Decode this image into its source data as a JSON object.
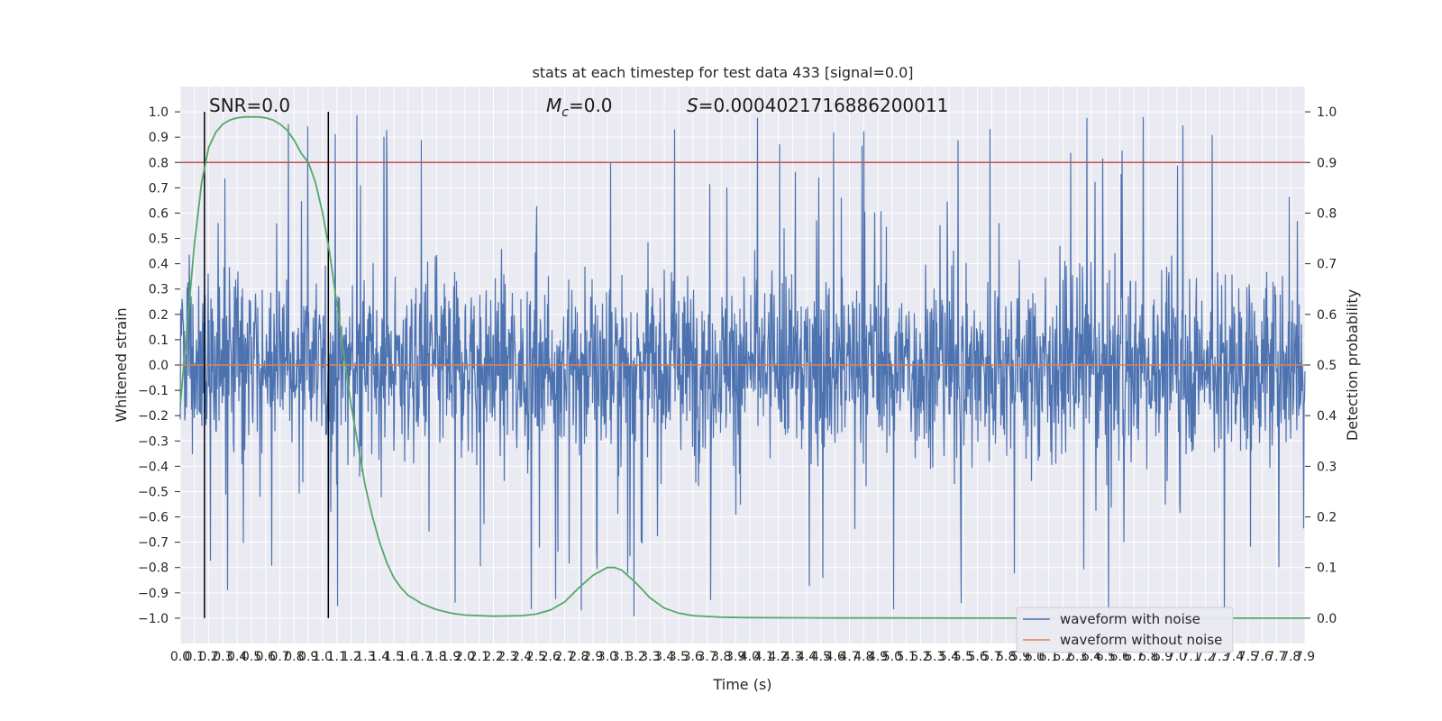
{
  "chart_data": {
    "type": "line",
    "title": "stats at each timestep for test data 433 [signal=0.0]",
    "xlabel": "Time (s)",
    "ylabel": "Whitened strain",
    "y2label": "Detection probability",
    "xlim": [
      0.0,
      7.9
    ],
    "ylim": [
      -1.1,
      1.1
    ],
    "y2lim": [
      -0.05,
      1.05
    ],
    "grid": true,
    "x_ticks": [
      0.0,
      0.1,
      0.2,
      0.3,
      0.4,
      0.5,
      0.6,
      0.7,
      0.8,
      0.9,
      1.0,
      1.1,
      1.2,
      1.3,
      1.4,
      1.5,
      1.6,
      1.7,
      1.8,
      1.9,
      2.0,
      2.1,
      2.2,
      2.3,
      2.4,
      2.5,
      2.6,
      2.7,
      2.8,
      2.9,
      3.0,
      3.1,
      3.2,
      3.3,
      3.4,
      3.5,
      3.6,
      3.7,
      3.8,
      3.9,
      4.0,
      4.1,
      4.2,
      4.3,
      4.4,
      4.5,
      4.6,
      4.7,
      4.8,
      4.9,
      5.0,
      5.1,
      5.2,
      5.3,
      5.4,
      5.5,
      5.6,
      5.7,
      5.8,
      5.9,
      6.0,
      6.1,
      6.2,
      6.3,
      6.4,
      6.5,
      6.6,
      6.7,
      6.8,
      6.9,
      7.0,
      7.1,
      7.2,
      7.3,
      7.4,
      7.5,
      7.6,
      7.7,
      7.8,
      7.9
    ],
    "y_ticks": [
      -1.0,
      -0.9,
      -0.8,
      -0.7,
      -0.6,
      -0.5,
      -0.4,
      -0.3,
      -0.2,
      -0.1,
      0.0,
      0.1,
      0.2,
      0.3,
      0.4,
      0.5,
      0.6,
      0.7,
      0.8,
      0.9,
      1.0
    ],
    "y2_ticks": [
      0.0,
      0.1,
      0.2,
      0.3,
      0.4,
      0.5,
      0.6,
      0.7,
      0.8,
      0.9,
      1.0
    ],
    "annotations": {
      "snr": "SNR=0.0",
      "mc": "=0.0",
      "mc_symbol": "M",
      "mc_sub": "c",
      "s": "=0.0004021716886200011",
      "s_symbol": "S"
    },
    "legend": {
      "placement": "lower-right",
      "entries": [
        "waveform with noise",
        "waveform without noise"
      ]
    },
    "threshold": {
      "value": 0.9,
      "axis": "y2",
      "color": "#c44e52"
    },
    "vlines": [
      0.17,
      1.04
    ],
    "noise_series": {
      "name": "waveform with noise",
      "color": "#4c72b0",
      "typical_amplitude": 0.45,
      "max_spike": 1.0
    },
    "clean_series": {
      "name": "waveform without noise",
      "color": "#dd8452",
      "constant_value": 0.0
    },
    "probability_series": {
      "axis": "y2",
      "color": "#55a868",
      "x": [
        0.0,
        0.05,
        0.1,
        0.15,
        0.2,
        0.25,
        0.3,
        0.35,
        0.4,
        0.45,
        0.5,
        0.55,
        0.6,
        0.65,
        0.7,
        0.75,
        0.8,
        0.85,
        0.9,
        0.95,
        1.0,
        1.05,
        1.1,
        1.15,
        1.2,
        1.25,
        1.3,
        1.35,
        1.4,
        1.45,
        1.5,
        1.55,
        1.6,
        1.7,
        1.8,
        1.9,
        2.0,
        2.2,
        2.4,
        2.5,
        2.6,
        2.7,
        2.8,
        2.9,
        3.0,
        3.05,
        3.1,
        3.2,
        3.3,
        3.4,
        3.5,
        3.6,
        3.8,
        4.0,
        4.5,
        5.0,
        5.5,
        6.0,
        6.5,
        7.0,
        7.5,
        7.9
      ],
      "y": [
        0.42,
        0.58,
        0.74,
        0.86,
        0.93,
        0.96,
        0.976,
        0.984,
        0.988,
        0.99,
        0.99,
        0.99,
        0.988,
        0.984,
        0.976,
        0.964,
        0.944,
        0.918,
        0.9,
        0.86,
        0.8,
        0.72,
        0.62,
        0.52,
        0.42,
        0.34,
        0.26,
        0.2,
        0.15,
        0.11,
        0.08,
        0.06,
        0.045,
        0.028,
        0.017,
        0.01,
        0.006,
        0.004,
        0.005,
        0.008,
        0.016,
        0.032,
        0.06,
        0.085,
        0.1,
        0.1,
        0.095,
        0.07,
        0.04,
        0.02,
        0.01,
        0.005,
        0.002,
        0.001,
        0.0005,
        0.0003,
        0.0002,
        0.0001,
        0.0001,
        0.0,
        0.0,
        0.0
      ]
    }
  }
}
